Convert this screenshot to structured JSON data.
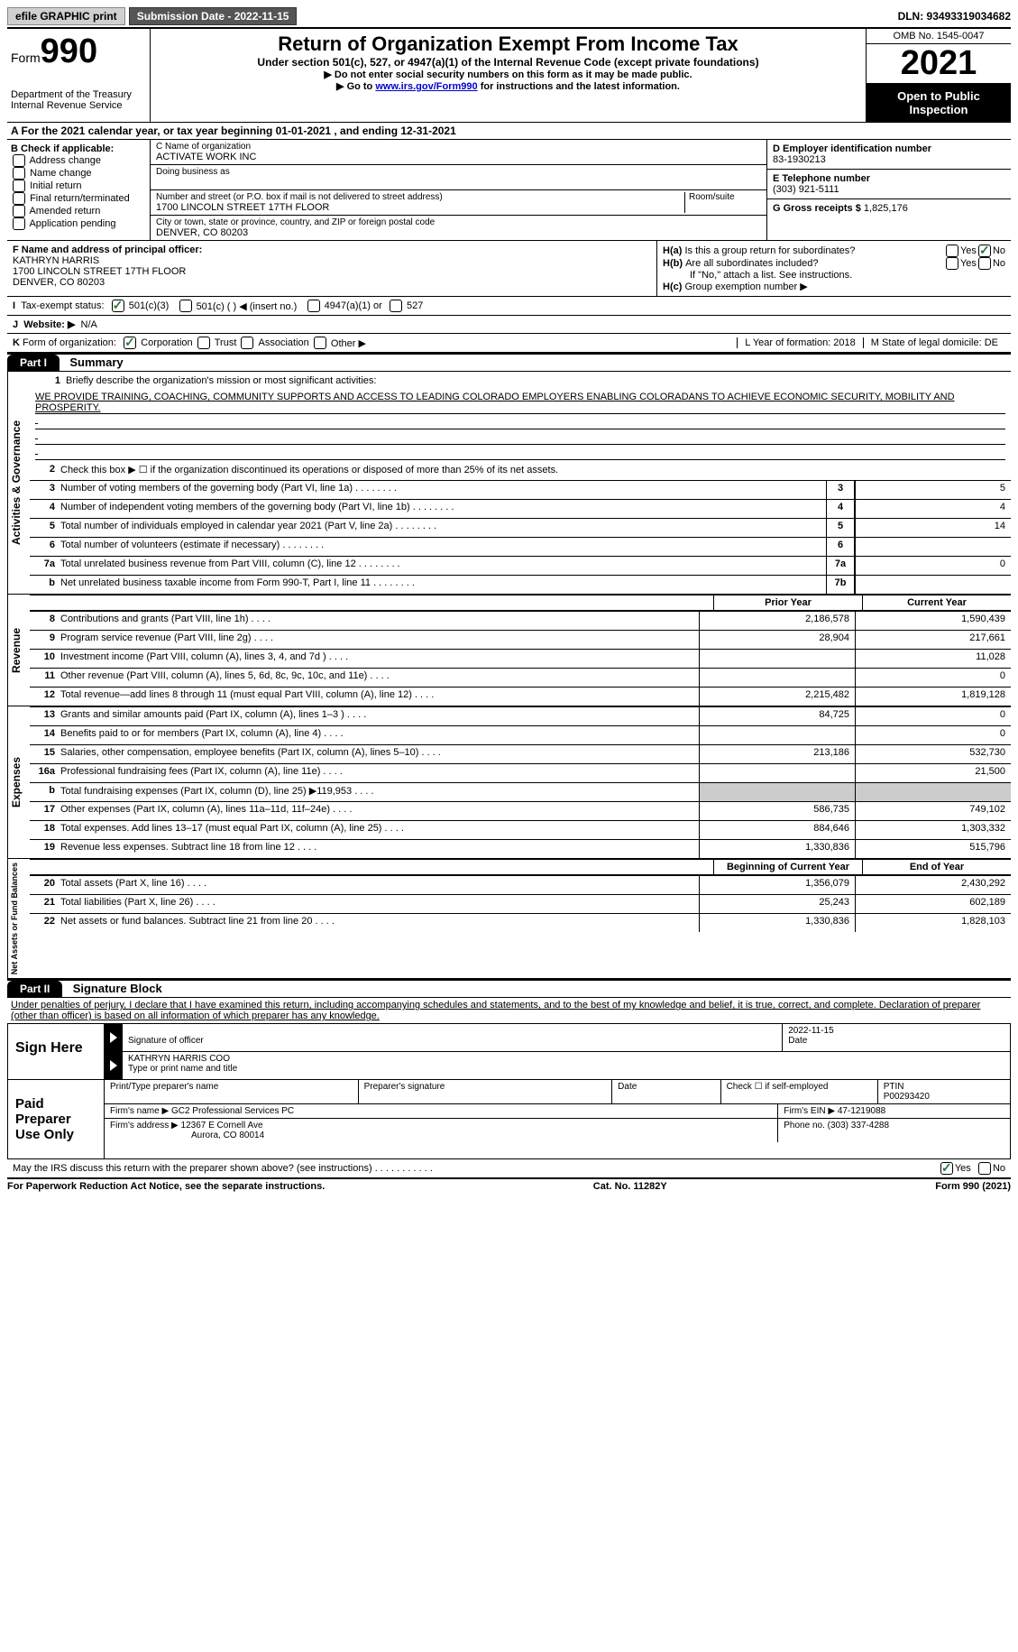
{
  "header": {
    "efile": "efile GRAPHIC print",
    "submission": "Submission Date - 2022-11-15",
    "dln": "DLN: 93493319034682"
  },
  "topbox": {
    "form_label": "Form",
    "form_num": "990",
    "title": "Return of Organization Exempt From Income Tax",
    "subtitle": "Under section 501(c), 527, or 4947(a)(1) of the Internal Revenue Code (except private foundations)",
    "instr1": "▶ Do not enter social security numbers on this form as it may be made public.",
    "instr2_pre": "▶ Go to ",
    "instr2_link": "www.irs.gov/Form990",
    "instr2_post": " for instructions and the latest information.",
    "dept": "Department of the Treasury",
    "irs": "Internal Revenue Service",
    "omb": "OMB No. 1545-0047",
    "year": "2021",
    "open": "Open to Public Inspection"
  },
  "row_a": "A For the 2021 calendar year, or tax year beginning 01-01-2021    , and ending 12-31-2021",
  "section_b": {
    "label": "B Check if applicable:",
    "opts": [
      "Address change",
      "Name change",
      "Initial return",
      "Final return/terminated",
      "Amended return",
      "Application pending"
    ]
  },
  "section_c": {
    "name_label": "C Name of organization",
    "name": "ACTIVATE WORK INC",
    "dba": "Doing business as",
    "addr_label": "Number and street (or P.O. box if mail is not delivered to street address)",
    "room": "Room/suite",
    "addr": "1700 LINCOLN STREET 17TH FLOOR",
    "city_label": "City or town, state or province, country, and ZIP or foreign postal code",
    "city": "DENVER, CO  80203"
  },
  "section_de": {
    "d_label": "D Employer identification number",
    "ein": "83-1930213",
    "e_label": "E Telephone number",
    "phone": "(303) 921-5111",
    "g_label": "G Gross receipts $",
    "gross": "1,825,176"
  },
  "section_f": {
    "label": "F Name and address of principal officer:",
    "name": "KATHRYN HARRIS",
    "addr1": "1700 LINCOLN STREET 17TH FLOOR",
    "addr2": "DENVER, CO  80203"
  },
  "section_h": {
    "ha1": "H(a)",
    "ha_text": "Is this a group return for subordinates?",
    "hb1": "H(b)",
    "hb_text": "Are all subordinates included?",
    "hb_note": "If \"No,\" attach a list. See instructions.",
    "hc1": "H(c)",
    "hc_text": "Group exemption number ▶",
    "yes": "Yes",
    "no": "No"
  },
  "row_i": {
    "label": "I",
    "text": "Tax-exempt status:",
    "o1": "501(c)(3)",
    "o2": "501(c) (    ) ◀ (insert no.)",
    "o3": "4947(a)(1) or",
    "o4": "527"
  },
  "row_j": {
    "label": "J",
    "text": "Website: ▶",
    "val": "N/A"
  },
  "row_k": {
    "label": "K",
    "text": "Form of organization:",
    "o1": "Corporation",
    "o2": "Trust",
    "o3": "Association",
    "o4": "Other ▶",
    "l": "L Year of formation: 2018",
    "m": "M State of legal domicile: DE"
  },
  "part1": {
    "header": "Part I",
    "title": "Summary"
  },
  "summary": {
    "l1": "Briefly describe the organization's mission or most significant activities:",
    "mission": "WE PROVIDE TRAINING, COACHING, COMMUNITY SUPPORTS AND ACCESS TO LEADING COLORADO EMPLOYERS ENABLING COLORADANS TO ACHIEVE ECONOMIC SECURITY, MOBILITY AND PROSPERITY.",
    "l2": "Check this box ▶ ☐ if the organization discontinued its operations or disposed of more than 25% of its net assets.",
    "lines_gov": [
      {
        "n": "3",
        "d": "Number of voting members of the governing body (Part VI, line 1a)",
        "b": "3",
        "v": "5"
      },
      {
        "n": "4",
        "d": "Number of independent voting members of the governing body (Part VI, line 1b)",
        "b": "4",
        "v": "4"
      },
      {
        "n": "5",
        "d": "Total number of individuals employed in calendar year 2021 (Part V, line 2a)",
        "b": "5",
        "v": "14"
      },
      {
        "n": "6",
        "d": "Total number of volunteers (estimate if necessary)",
        "b": "6",
        "v": ""
      },
      {
        "n": "7a",
        "d": "Total unrelated business revenue from Part VIII, column (C), line 12",
        "b": "7a",
        "v": "0"
      },
      {
        "n": "b",
        "d": "Net unrelated business taxable income from Form 990-T, Part I, line 11",
        "b": "7b",
        "v": ""
      }
    ],
    "prior": "Prior Year",
    "current": "Current Year",
    "revenue": [
      {
        "n": "8",
        "d": "Contributions and grants (Part VIII, line 1h)",
        "p": "2,186,578",
        "c": "1,590,439"
      },
      {
        "n": "9",
        "d": "Program service revenue (Part VIII, line 2g)",
        "p": "28,904",
        "c": "217,661"
      },
      {
        "n": "10",
        "d": "Investment income (Part VIII, column (A), lines 3, 4, and 7d )",
        "p": "",
        "c": "11,028"
      },
      {
        "n": "11",
        "d": "Other revenue (Part VIII, column (A), lines 5, 6d, 8c, 9c, 10c, and 11e)",
        "p": "",
        "c": "0"
      },
      {
        "n": "12",
        "d": "Total revenue—add lines 8 through 11 (must equal Part VIII, column (A), line 12)",
        "p": "2,215,482",
        "c": "1,819,128"
      }
    ],
    "expenses": [
      {
        "n": "13",
        "d": "Grants and similar amounts paid (Part IX, column (A), lines 1–3 )",
        "p": "84,725",
        "c": "0"
      },
      {
        "n": "14",
        "d": "Benefits paid to or for members (Part IX, column (A), line 4)",
        "p": "",
        "c": "0"
      },
      {
        "n": "15",
        "d": "Salaries, other compensation, employee benefits (Part IX, column (A), lines 5–10)",
        "p": "213,186",
        "c": "532,730"
      },
      {
        "n": "16a",
        "d": "Professional fundraising fees (Part IX, column (A), line 11e)",
        "p": "",
        "c": "21,500"
      },
      {
        "n": "b",
        "d": "Total fundraising expenses (Part IX, column (D), line 25) ▶119,953",
        "p": "GRAY",
        "c": "GRAY"
      },
      {
        "n": "17",
        "d": "Other expenses (Part IX, column (A), lines 11a–11d, 11f–24e)",
        "p": "586,735",
        "c": "749,102"
      },
      {
        "n": "18",
        "d": "Total expenses. Add lines 13–17 (must equal Part IX, column (A), line 25)",
        "p": "884,646",
        "c": "1,303,332"
      },
      {
        "n": "19",
        "d": "Revenue less expenses. Subtract line 18 from line 12",
        "p": "1,330,836",
        "c": "515,796"
      }
    ],
    "begin": "Beginning of Current Year",
    "end": "End of Year",
    "net": [
      {
        "n": "20",
        "d": "Total assets (Part X, line 16)",
        "p": "1,356,079",
        "c": "2,430,292"
      },
      {
        "n": "21",
        "d": "Total liabilities (Part X, line 26)",
        "p": "25,243",
        "c": "602,189"
      },
      {
        "n": "22",
        "d": "Net assets or fund balances. Subtract line 21 from line 20",
        "p": "1,330,836",
        "c": "1,828,103"
      }
    ]
  },
  "side_labels": {
    "gov": "Activities & Governance",
    "rev": "Revenue",
    "exp": "Expenses",
    "net": "Net Assets or Fund Balances"
  },
  "part2": {
    "header": "Part II",
    "title": "Signature Block",
    "declaration": "Under penalties of perjury, I declare that I have examined this return, including accompanying schedules and statements, and to the best of my knowledge and belief, it is true, correct, and complete. Declaration of preparer (other than officer) is based on all information of which preparer has any knowledge."
  },
  "sign": {
    "label": "Sign Here",
    "sig_officer": "Signature of officer",
    "date": "Date",
    "date_val": "2022-11-15",
    "name": "KATHRYN HARRIS COO",
    "name_label": "Type or print name and title"
  },
  "preparer": {
    "label": "Paid Preparer Use Only",
    "print_name": "Print/Type preparer's name",
    "sig": "Preparer's signature",
    "date": "Date",
    "check": "Check ☐ if self-employed",
    "ptin_label": "PTIN",
    "ptin": "P00293420",
    "firm_name_label": "Firm's name    ▶",
    "firm_name": "GC2 Professional Services PC",
    "firm_ein_label": "Firm's EIN ▶",
    "firm_ein": "47-1219088",
    "firm_addr_label": "Firm's address ▶",
    "firm_addr1": "12367 E Cornell Ave",
    "firm_addr2": "Aurora, CO  80014",
    "phone_label": "Phone no.",
    "phone": "(303) 337-4288"
  },
  "discuss": {
    "text": "May the IRS discuss this return with the preparer shown above? (see instructions)",
    "yes": "Yes",
    "no": "No"
  },
  "footer": {
    "left": "For Paperwork Reduction Act Notice, see the separate instructions.",
    "mid": "Cat. No. 11282Y",
    "right": "Form 990 (2021)"
  }
}
